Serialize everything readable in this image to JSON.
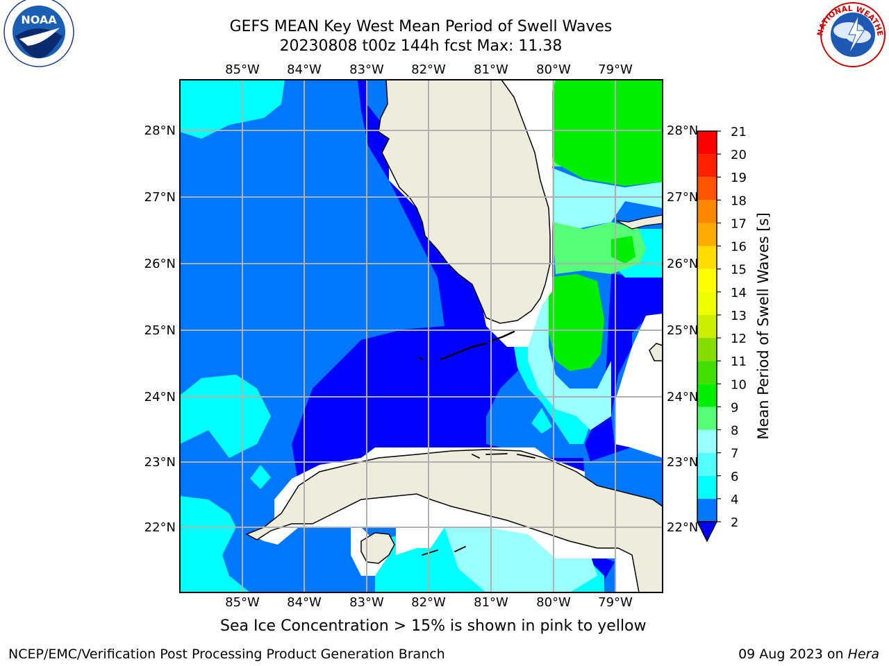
{
  "header": {
    "title_line1": "GEFS MEAN Key West Mean Period of Swell Waves",
    "title_line2": "20230808 t00z 144h fcst   Max: 11.38"
  },
  "logos": {
    "left": {
      "name": "noaa-logo",
      "text": "NOAA",
      "ring_text": "NATIONAL OCEANIC AND ATMOSPHERIC ADMINISTRATION · U.S. DEPARTMENT OF COMMERCE"
    },
    "right": {
      "name": "nws-logo",
      "ring_text": "NATIONAL WEATHER SERVICE"
    }
  },
  "map": {
    "lon_labels": [
      "85°W",
      "84°W",
      "83°W",
      "82°W",
      "81°W",
      "80°W",
      "79°W"
    ],
    "lat_labels": [
      "28°N",
      "27°N",
      "26°N",
      "25°N",
      "24°N",
      "23°N",
      "22°N"
    ],
    "colors": {
      "land": "#eeecdc",
      "coast": "#000000",
      "grid": "#b0b0b0",
      "dark_blue": "#0000ff",
      "med_blue": "#0077ff",
      "cyan": "#00ffff",
      "light_cyan": "#55ffff",
      "pale_cyan": "#99ffff",
      "light_green": "#55ff77",
      "green": "#00ee00"
    }
  },
  "colorbar": {
    "title": "Mean Period of Swell Waves [s]",
    "levels": [
      "2",
      "4",
      "6",
      "7",
      "8",
      "9",
      "10",
      "11",
      "12",
      "13",
      "14",
      "15",
      "16",
      "17",
      "18",
      "19",
      "20",
      "21"
    ],
    "colors": [
      "#0000ff",
      "#0077ff",
      "#00ffff",
      "#55ffff",
      "#99ffff",
      "#55ff77",
      "#00ee00",
      "#44dd00",
      "#88dd00",
      "#ccee00",
      "#eeff00",
      "#ffff00",
      "#ffdd00",
      "#ffaa00",
      "#ff8800",
      "#ff5500",
      "#ff2200",
      "#ff0000"
    ]
  },
  "notes": {
    "sea_ice": "Sea Ice Concentration > 15% is shown in pink to yellow",
    "footer_left": "NCEP/EMC/Verification Post Processing Product Generation Branch",
    "footer_date": "09 Aug 2023 on ",
    "footer_machine": "Hera"
  }
}
